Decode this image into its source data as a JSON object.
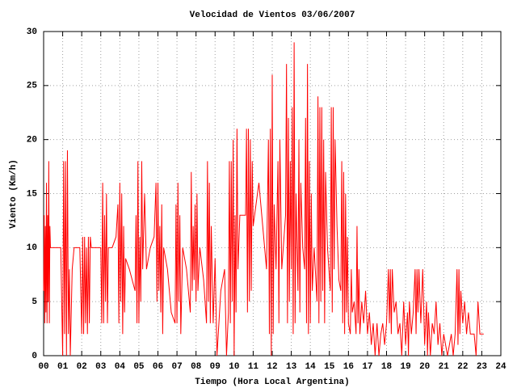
{
  "chart_data": {
    "type": "line",
    "title": "Velocidad de Vientos 03/06/2007",
    "xlabel": "Tiempo (Hora Local Argentina)",
    "ylabel": "Viento (Km/h)",
    "color": "#ff0000",
    "grid": true,
    "xlim": [
      0,
      24
    ],
    "ylim": [
      0,
      30
    ],
    "xticks": [
      {
        "value": 0,
        "label": "00"
      },
      {
        "value": 1,
        "label": "01"
      },
      {
        "value": 2,
        "label": "02"
      },
      {
        "value": 3,
        "label": "03"
      },
      {
        "value": 4,
        "label": "04"
      },
      {
        "value": 5,
        "label": "05"
      },
      {
        "value": 6,
        "label": "06"
      },
      {
        "value": 7,
        "label": "07"
      },
      {
        "value": 8,
        "label": "08"
      },
      {
        "value": 9,
        "label": "09"
      },
      10,
      11,
      12,
      13,
      14,
      15,
      16,
      17,
      18,
      19,
      20,
      21,
      22,
      23,
      24
    ],
    "yticks": [
      0,
      5,
      10,
      15,
      20,
      25,
      30
    ],
    "x": [
      0,
      0.03,
      0.06,
      0.09,
      0.12,
      0.15,
      0.18,
      0.21,
      0.24,
      0.27,
      0.3,
      0.33,
      0.36,
      0.6,
      0.9,
      1.0,
      1.05,
      1.1,
      1.15,
      1.2,
      1.25,
      1.3,
      1.35,
      1.4,
      1.5,
      1.6,
      1.9,
      2.0,
      2.05,
      2.1,
      2.15,
      2.2,
      2.25,
      2.3,
      2.35,
      2.4,
      2.45,
      2.5,
      3.0,
      3.05,
      3.1,
      3.15,
      3.2,
      3.25,
      3.3,
      3.35,
      3.4,
      3.6,
      3.8,
      3.9,
      3.95,
      4.0,
      4.05,
      4.1,
      4.15,
      4.2,
      4.25,
      4.3,
      4.5,
      4.8,
      4.85,
      4.9,
      4.95,
      5.0,
      5.05,
      5.1,
      5.15,
      5.2,
      5.3,
      5.4,
      5.6,
      5.8,
      5.9,
      5.95,
      6.0,
      6.05,
      6.1,
      6.15,
      6.2,
      6.25,
      6.3,
      6.5,
      6.7,
      6.9,
      6.95,
      7.0,
      7.05,
      7.1,
      7.15,
      7.2,
      7.3,
      7.5,
      7.7,
      7.75,
      7.8,
      7.85,
      7.9,
      7.95,
      8.0,
      8.05,
      8.1,
      8.2,
      8.4,
      8.55,
      8.6,
      8.65,
      8.7,
      8.75,
      8.8,
      8.9,
      9.0,
      9.1,
      9.2,
      9.3,
      9.5,
      9.6,
      9.7,
      9.75,
      9.8,
      9.85,
      9.9,
      9.95,
      10.0,
      10.05,
      10.1,
      10.15,
      10.2,
      10.3,
      10.6,
      10.65,
      10.7,
      10.75,
      10.8,
      10.85,
      10.9,
      10.95,
      11.0,
      11.3,
      11.5,
      11.7,
      11.8,
      11.85,
      11.9,
      11.95,
      12.0,
      12.05,
      12.1,
      12.2,
      12.3,
      12.35,
      12.4,
      12.5,
      12.7,
      12.75,
      12.8,
      12.85,
      12.9,
      12.95,
      13.0,
      13.05,
      13.1,
      13.15,
      13.2,
      13.25,
      13.35,
      13.4,
      13.45,
      13.5,
      13.6,
      13.7,
      13.75,
      13.8,
      13.85,
      13.9,
      13.95,
      14.0,
      14.05,
      14.1,
      14.2,
      14.35,
      14.4,
      14.45,
      14.5,
      14.55,
      14.6,
      14.65,
      14.7,
      14.75,
      14.8,
      14.9,
      15.05,
      15.1,
      15.15,
      15.2,
      15.25,
      15.3,
      15.4,
      15.5,
      15.6,
      15.65,
      15.7,
      15.75,
      15.8,
      15.85,
      15.9,
      15.95,
      16.0,
      16.1,
      16.15,
      16.2,
      16.3,
      16.4,
      16.45,
      16.5,
      16.55,
      16.6,
      16.7,
      16.8,
      16.9,
      17.0,
      17.1,
      17.2,
      17.3,
      17.4,
      17.5,
      17.6,
      17.7,
      17.8,
      17.9,
      18.0,
      18.1,
      18.15,
      18.2,
      18.25,
      18.3,
      18.4,
      18.5,
      18.6,
      18.7,
      18.8,
      18.9,
      19.0,
      19.1,
      19.15,
      19.2,
      19.3,
      19.4,
      19.5,
      19.55,
      19.6,
      19.65,
      19.7,
      19.8,
      19.9,
      20.0,
      20.1,
      20.15,
      20.2,
      20.3,
      20.4,
      20.5,
      20.6,
      20.7,
      20.8,
      20.9,
      21.0,
      21.2,
      21.4,
      21.5,
      21.6,
      21.7,
      21.75,
      21.8,
      21.85,
      21.9,
      22.0,
      22.1,
      22.2,
      22.3,
      22.4,
      22.5,
      22.6,
      22.7,
      22.8,
      22.9,
      23.1
    ],
    "values": [
      6,
      13,
      3,
      12,
      4,
      16,
      3,
      13,
      5,
      18,
      3,
      12,
      10,
      10,
      10,
      0,
      18,
      2,
      18,
      0,
      19,
      2,
      8,
      0,
      8,
      10,
      10,
      2,
      11,
      2,
      11,
      3,
      10,
      2,
      11,
      3,
      11,
      10,
      10,
      3,
      16,
      3,
      13,
      5,
      15,
      3,
      10,
      10,
      11,
      14,
      3,
      16,
      5,
      15,
      2,
      12,
      4,
      9,
      8,
      6,
      13,
      3,
      18,
      3,
      11,
      5,
      18,
      8,
      15,
      8,
      10,
      11,
      16,
      5,
      16,
      6,
      12,
      4,
      14,
      2,
      10,
      8,
      4,
      3,
      14,
      3,
      16,
      5,
      13,
      2,
      10,
      8,
      4,
      17,
      6,
      12,
      7,
      14,
      5,
      15,
      6,
      10,
      7,
      3,
      18,
      5,
      16,
      3,
      12,
      3,
      9,
      0,
      3,
      6,
      8,
      0,
      4,
      18,
      3,
      18,
      5,
      20,
      0,
      13,
      4,
      21,
      8,
      13,
      13,
      21,
      4,
      21,
      5,
      20,
      6,
      18,
      12,
      16,
      12,
      8,
      20,
      2,
      21,
      0,
      26,
      2,
      14,
      8,
      18,
      3,
      20,
      8,
      13,
      27,
      3,
      22,
      5,
      18,
      8,
      23,
      2,
      29,
      3,
      15,
      6,
      20,
      4,
      16,
      10,
      8,
      22,
      3,
      27,
      2,
      18,
      3,
      15,
      6,
      10,
      5,
      24,
      3,
      23,
      5,
      23,
      6,
      20,
      3,
      17,
      10,
      6,
      23,
      4,
      23,
      8,
      20,
      12,
      7,
      6,
      18,
      3,
      17,
      2,
      15,
      4,
      11,
      3,
      2,
      8,
      4,
      5,
      2,
      12,
      3,
      8,
      2,
      5,
      3,
      6,
      2,
      4,
      1,
      3,
      0,
      3,
      0,
      2,
      3,
      1,
      3,
      8,
      3,
      8,
      2,
      8,
      4,
      5,
      2,
      3,
      0,
      5,
      1,
      4,
      0,
      5,
      2,
      4,
      8,
      2,
      8,
      4,
      8,
      3,
      8,
      1,
      5,
      0,
      4,
      0,
      3,
      2,
      5,
      1,
      3,
      0,
      2,
      0,
      2,
      0,
      2,
      8,
      1,
      8,
      2,
      6,
      3,
      5,
      2,
      4,
      2,
      2,
      2,
      0,
      5,
      2,
      2
    ]
  }
}
